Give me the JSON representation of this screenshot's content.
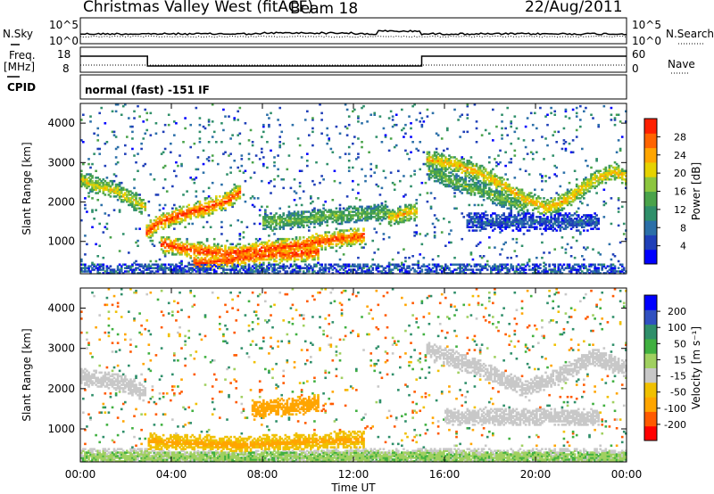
{
  "header": {
    "station": "Christmas Valley West (fitACF)",
    "beam": "Beam 18",
    "date": "22/Aug/2011"
  },
  "params": {
    "nsky_label": "N.Sky",
    "freq_label": "Freq.",
    "freq_unit": "[MHz]",
    "cpid_label": "CPID",
    "nsearch_label": "N.Search",
    "nave_label": "Nave",
    "nsky_ticks": [
      "10^5",
      "10^0"
    ],
    "nsearch_ticks": [
      "10^5",
      "10^0"
    ],
    "freq_ticks": [
      "18",
      "8"
    ],
    "nave_ticks": [
      "60",
      "0"
    ],
    "cpid_text": "normal (fast) -151 IF"
  },
  "axes": {
    "xlabel": "Time UT",
    "x_ticks": [
      "00:00",
      "04:00",
      "08:00",
      "12:00",
      "16:00",
      "20:00",
      "00:00"
    ],
    "ylabel": "Slant Range [km]",
    "y_ticks": [
      "4000",
      "3000",
      "2000",
      "1000"
    ]
  },
  "colorbars": {
    "power": {
      "label": "Power [dB]",
      "ticks": [
        "28",
        "24",
        "20",
        "16",
        "12",
        "8",
        "4"
      ],
      "colors": [
        "#0000ff",
        "#1f3fb8",
        "#2b6fa8",
        "#2f8f6a",
        "#4aa34a",
        "#8cc63f",
        "#e6d200",
        "#ffa500",
        "#ff6400",
        "#ff2000"
      ]
    },
    "velocity": {
      "label": "Velocity [m s⁻¹]",
      "ticks": [
        "200",
        "100",
        "50",
        "15",
        "-15",
        "-50",
        "-100",
        "-200"
      ],
      "colors": [
        "#ff0000",
        "#ff5a00",
        "#ffa500",
        "#f0c000",
        "#c8c8c8",
        "#a0d060",
        "#40b040",
        "#2f8f6a",
        "#3050c0",
        "#0000ff"
      ]
    }
  },
  "chart_data": [
    {
      "type": "heatmap",
      "title": "Power",
      "xlabel": "Time UT",
      "ylabel": "Slant Range [km]",
      "xlim_hours": [
        0,
        24
      ],
      "ylim_km": [
        180,
        4500
      ],
      "colorbar_label": "Power [dB]",
      "colorbar_ticks": [
        4,
        8,
        12,
        16,
        20,
        24,
        28
      ],
      "echo_bands": [
        {
          "t": [
            0,
            0.5,
            1.5,
            2.5,
            2.9
          ],
          "r": [
            2600,
            2450,
            2300,
            2000,
            1850
          ],
          "power": 20
        },
        {
          "t": [
            2.9,
            3.5,
            4.5,
            5.5,
            6.5,
            7.0
          ],
          "r": [
            1250,
            1500,
            1700,
            1850,
            2050,
            2250
          ],
          "power": 27
        },
        {
          "t": [
            3.5,
            5,
            6.5,
            8,
            9.5,
            11,
            12.5
          ],
          "r": [
            950,
            780,
            700,
            800,
            900,
            1050,
            1150
          ],
          "power": 27
        },
        {
          "t": [
            5,
            6.5,
            8,
            9.5,
            10.5
          ],
          "r": [
            450,
            550,
            650,
            700,
            750
          ],
          "power": 27
        },
        {
          "t": [
            8,
            9.5,
            11,
            12.5,
            13.5
          ],
          "r": [
            1500,
            1550,
            1650,
            1700,
            1750
          ],
          "power": 16
        },
        {
          "t": [
            13.5,
            14.2,
            14.8
          ],
          "r": [
            1600,
            1700,
            1800
          ],
          "power": 22
        },
        {
          "t": [
            15.2,
            16.5,
            17.5,
            18.5,
            19.5,
            20.5,
            21.5,
            22.5,
            23.5,
            24
          ],
          "r": [
            3100,
            2950,
            2750,
            2450,
            2100,
            1850,
            2100,
            2550,
            2800,
            2600
          ],
          "power": 22
        },
        {
          "t": [
            15.3,
            16.5,
            18,
            19.5
          ],
          "r": [
            2800,
            2500,
            2200,
            1900
          ],
          "power": 16
        },
        {
          "t": [
            17,
            19,
            21,
            22.8
          ],
          "r": [
            1500,
            1500,
            1500,
            1500
          ],
          "power": 8
        }
      ]
    },
    {
      "type": "heatmap",
      "title": "Velocity",
      "xlabel": "Time UT",
      "ylabel": "Slant Range [km]",
      "xlim_hours": [
        0,
        24
      ],
      "ylim_km": [
        180,
        4500
      ],
      "colorbar_label": "Velocity [m s⁻¹]",
      "colorbar_ticks": [
        -200,
        -100,
        -50,
        -15,
        15,
        50,
        100,
        200
      ],
      "echo_bands": [
        {
          "t": [
            0,
            1.5,
            2.9
          ],
          "r": [
            2300,
            2200,
            1900
          ],
          "velocity": 0
        },
        {
          "t": [
            3,
            5,
            7,
            8.5,
            10.5,
            12.5
          ],
          "r": [
            700,
            650,
            600,
            650,
            700,
            750
          ],
          "velocity": -40
        },
        {
          "t": [
            7.5,
            9,
            10.5
          ],
          "r": [
            1500,
            1550,
            1650
          ],
          "velocity": -60
        },
        {
          "t": [
            15.2,
            18,
            19.5,
            21,
            22.5,
            24
          ],
          "r": [
            3000,
            2400,
            2000,
            2300,
            2800,
            2500
          ],
          "velocity": 0
        },
        {
          "t": [
            16,
            19,
            22.8
          ],
          "r": [
            1300,
            1300,
            1300
          ],
          "velocity": 0
        },
        {
          "t": [
            0,
            6,
            12,
            18,
            24
          ],
          "r": [
            300,
            300,
            300,
            300,
            300
          ],
          "velocity": 20
        }
      ]
    }
  ]
}
